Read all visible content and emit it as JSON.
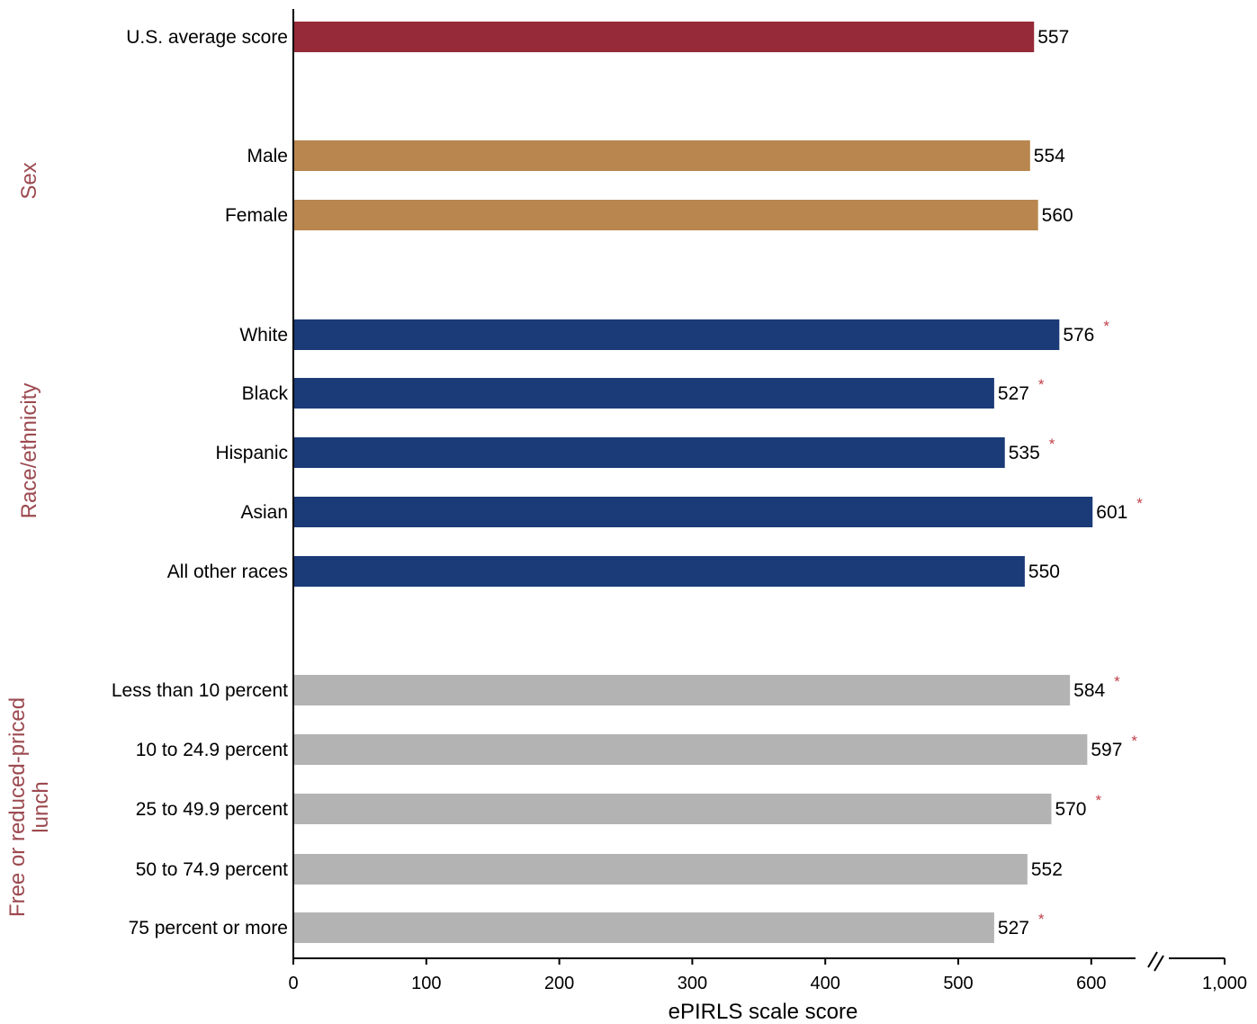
{
  "chart_data": {
    "type": "bar",
    "orientation": "horizontal",
    "xlabel": "ePIRLS scale score",
    "xlim": [
      0,
      1000
    ],
    "x_ticks": [
      0,
      100,
      200,
      300,
      400,
      500,
      600,
      1000
    ],
    "x_tick_labels": [
      "0",
      "100",
      "200",
      "300",
      "400",
      "500",
      "600",
      "1,000"
    ],
    "axis_break": "between 600 and 1,000",
    "significance_marker": "*",
    "colors": {
      "overall": "#962a38",
      "sex": "#b8864e",
      "race": "#1b3a78",
      "lunch": "#b3b3b3",
      "group_label": "#9c4a50",
      "star": "#c0404a"
    },
    "groups": [
      {
        "label": "",
        "color_key": "overall",
        "bars": [
          {
            "category": "U.S. average score",
            "value": 557,
            "value_label": "557",
            "significant": false
          }
        ]
      },
      {
        "label": "Sex",
        "color_key": "sex",
        "bars": [
          {
            "category": "Male",
            "value": 554,
            "value_label": "554",
            "significant": false
          },
          {
            "category": "Female",
            "value": 560,
            "value_label": "560",
            "significant": false
          }
        ]
      },
      {
        "label": "Race/ethnicity",
        "color_key": "race",
        "bars": [
          {
            "category": "White",
            "value": 576,
            "value_label": "576",
            "significant": true
          },
          {
            "category": "Black",
            "value": 527,
            "value_label": "527",
            "significant": true
          },
          {
            "category": "Hispanic",
            "value": 535,
            "value_label": "535",
            "significant": true
          },
          {
            "category": "Asian",
            "value": 601,
            "value_label": "601",
            "significant": true
          },
          {
            "category": "All other races",
            "value": 550,
            "value_label": "550",
            "significant": false
          }
        ]
      },
      {
        "label": "Free or reduced-priced lunch",
        "label_lines": [
          "Free or reduced-priced",
          "lunch"
        ],
        "color_key": "lunch",
        "bars": [
          {
            "category": "Less than 10 percent",
            "value": 584,
            "value_label": "584",
            "significant": true
          },
          {
            "category": "10 to 24.9 percent",
            "value": 597,
            "value_label": "597",
            "significant": true
          },
          {
            "category": "25 to 49.9 percent",
            "value": 570,
            "value_label": "570",
            "significant": true
          },
          {
            "category": "50 to 74.9 percent",
            "value": 552,
            "value_label": "552",
            "significant": false
          },
          {
            "category": "75 percent or more",
            "value": 527,
            "value_label": "527",
            "significant": true
          }
        ]
      }
    ]
  }
}
